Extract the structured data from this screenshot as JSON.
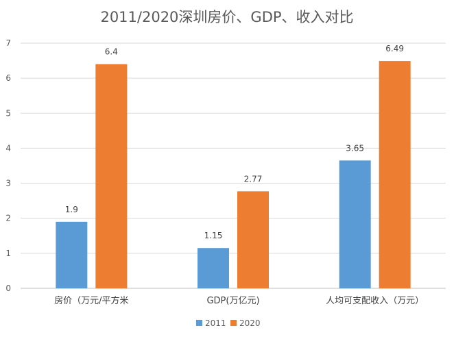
{
  "chart_data": {
    "type": "bar",
    "title": "2011/2020深圳房价、GDP、收入对比",
    "xlabel": "",
    "ylabel": "",
    "categories": [
      "房价（万元/平方米",
      "GDP(万亿元)",
      "人均可支配收入（万元）"
    ],
    "series": [
      {
        "name": "2011",
        "values": [
          1.9,
          1.15,
          3.65
        ],
        "labels": [
          "1.9",
          "1.15",
          "3.65"
        ],
        "color": "#5b9bd5"
      },
      {
        "name": "2020",
        "values": [
          6.4,
          2.77,
          6.49
        ],
        "labels": [
          "6.4",
          "2.77",
          "6.49"
        ],
        "color": "#ed7d31"
      }
    ],
    "ylim": [
      0,
      7
    ],
    "yticks": [
      0,
      1,
      2,
      3,
      4,
      5,
      6,
      7
    ],
    "grid": true,
    "legend": "bottom"
  }
}
